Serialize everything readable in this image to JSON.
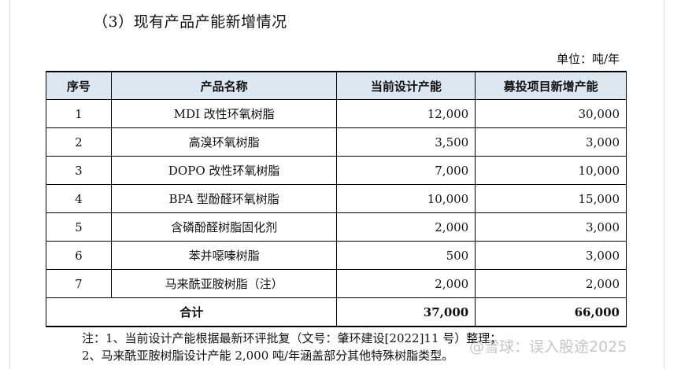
{
  "section_title": "（3）现有产品产能新增情况",
  "unit_label": "单位：吨/年",
  "table": {
    "headers": [
      "序号",
      "产品名称",
      "当前设计产能",
      "募投项目新增产能"
    ],
    "rows": [
      {
        "no": "1",
        "name": "MDI 改性环氧树脂",
        "current": "12,000",
        "added": "30,000"
      },
      {
        "no": "2",
        "name": "高溴环氧树脂",
        "current": "3,500",
        "added": "3,000"
      },
      {
        "no": "3",
        "name": "DOPO 改性环氧树脂",
        "current": "7,000",
        "added": "10,000"
      },
      {
        "no": "4",
        "name": "BPA 型酚醛环氧树脂",
        "current": "10,000",
        "added": "15,000"
      },
      {
        "no": "5",
        "name": "含磷酚醛树脂固化剂",
        "current": "2,000",
        "added": "3,000"
      },
      {
        "no": "6",
        "name": "苯并噁嗪树脂",
        "current": "500",
        "added": "3,000"
      },
      {
        "no": "7",
        "name": "马来酰亚胺树脂（注）",
        "current": "2,000",
        "added": "2,000"
      }
    ],
    "total": {
      "label": "合计",
      "current": "37,000",
      "added": "66,000"
    }
  },
  "notes": [
    "注：1、当前设计产能根据最新环评批复（文号：肇环建设[2022]11 号）整理；",
    "2、马来酰亚胺树脂设计产能 2,000 吨/年涵盖部分其他特殊树脂类型。"
  ],
  "watermark": "@雪球：误入股途2025"
}
